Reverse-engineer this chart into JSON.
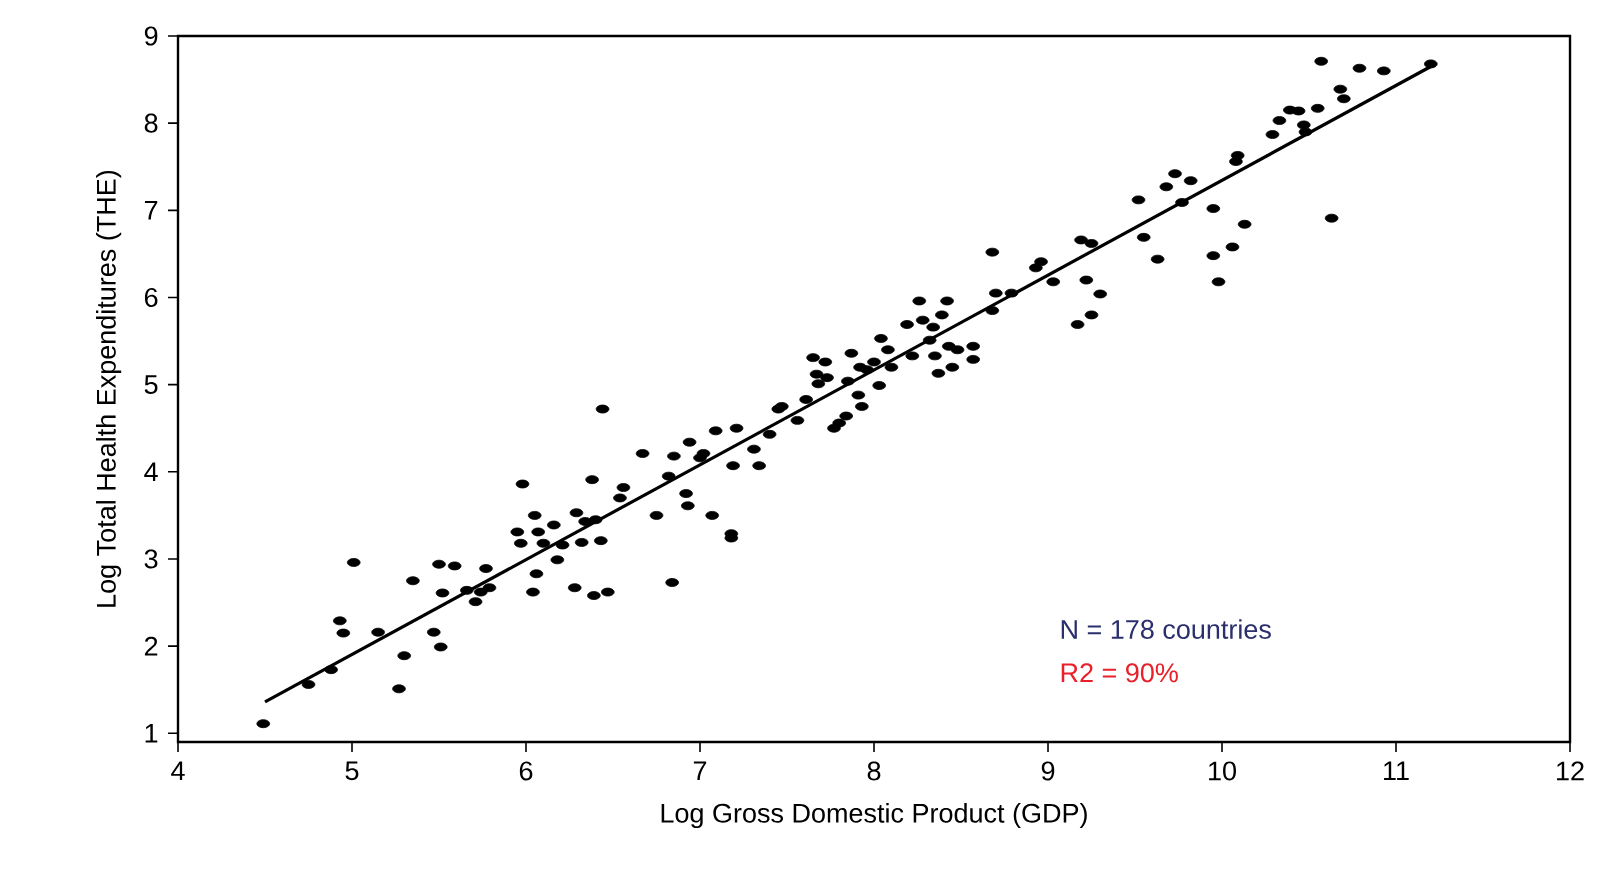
{
  "chart_data": {
    "type": "scatter",
    "xlabel": "Log Gross Domestic Product (GDP)",
    "ylabel": "Log Total Health Expenditures (THE)",
    "xlim": [
      4,
      12
    ],
    "ylim": [
      0.9,
      9
    ],
    "xticks": [
      4,
      5,
      6,
      7,
      8,
      9,
      10,
      11,
      12
    ],
    "yticks": [
      1,
      2,
      3,
      4,
      5,
      6,
      7,
      8,
      9
    ],
    "annotations": [
      "N = 178 countries",
      "R2 = 90%"
    ],
    "series": [
      {
        "marker": "circle",
        "color": "#000000",
        "x": [
          4.49,
          4.75,
          4.88,
          4.93,
          4.95,
          5.01,
          5.15,
          5.27,
          5.3,
          5.35,
          5.47,
          5.5,
          5.51,
          5.52,
          5.59,
          5.66,
          5.71,
          5.74,
          5.77,
          5.79,
          5.98,
          5.95,
          5.97,
          6.04,
          6.05,
          6.06,
          6.07,
          6.1,
          6.16,
          6.18,
          6.21,
          6.28,
          6.29,
          6.32,
          6.34,
          6.38,
          6.39,
          6.44,
          6.43,
          6.4,
          6.47,
          6.54,
          6.56,
          6.67,
          6.75,
          6.82,
          6.85,
          6.84,
          6.92,
          6.93,
          6.94,
          7.0,
          7.02,
          7.07,
          7.09,
          7.19,
          7.18,
          7.18,
          7.21,
          7.31,
          7.34,
          7.4,
          7.45,
          7.47,
          7.56,
          7.61,
          7.65,
          7.67,
          7.68,
          7.72,
          7.73,
          7.77,
          7.8,
          7.84,
          7.85,
          7.87,
          7.91,
          7.92,
          7.93,
          7.96,
          8.0,
          8.03,
          8.04,
          8.08,
          8.1,
          8.19,
          8.22,
          8.26,
          8.28,
          8.32,
          8.34,
          8.35,
          8.37,
          8.39,
          8.42,
          8.43,
          8.45,
          8.48,
          8.57,
          8.57,
          8.68,
          8.68,
          8.7,
          8.79,
          8.93,
          8.96,
          9.03,
          9.17,
          9.19,
          9.22,
          9.25,
          9.25,
          9.3,
          9.52,
          9.55,
          9.63,
          9.68,
          9.73,
          9.77,
          9.82,
          9.95,
          9.95,
          9.98,
          10.06,
          10.08,
          10.09,
          10.13,
          10.29,
          10.33,
          10.39,
          10.44,
          10.47,
          10.48,
          10.55,
          10.57,
          10.63,
          10.68,
          10.7,
          10.79,
          10.93,
          11.2
        ],
        "values": [
          1.11,
          1.56,
          1.73,
          2.29,
          2.15,
          2.96,
          2.16,
          1.51,
          1.89,
          2.75,
          2.16,
          2.94,
          1.99,
          2.61,
          2.92,
          2.64,
          2.51,
          2.62,
          2.89,
          2.67,
          3.86,
          3.31,
          3.18,
          2.62,
          3.5,
          2.83,
          3.31,
          3.18,
          3.39,
          2.99,
          3.16,
          2.67,
          3.53,
          3.19,
          3.43,
          3.91,
          2.58,
          4.72,
          3.21,
          3.45,
          2.62,
          3.7,
          3.82,
          4.21,
          3.5,
          3.95,
          4.18,
          2.73,
          3.75,
          3.61,
          4.34,
          4.16,
          4.21,
          3.5,
          4.47,
          4.07,
          3.29,
          3.24,
          4.5,
          4.26,
          4.07,
          4.43,
          4.72,
          4.75,
          4.59,
          4.83,
          5.31,
          5.12,
          5.01,
          5.26,
          5.08,
          4.5,
          4.56,
          4.64,
          5.04,
          5.36,
          4.88,
          5.2,
          4.75,
          5.17,
          5.26,
          4.99,
          5.53,
          5.4,
          5.2,
          5.69,
          5.33,
          5.96,
          5.74,
          5.51,
          5.66,
          5.33,
          5.13,
          5.8,
          5.96,
          5.44,
          5.2,
          5.4,
          5.29,
          5.44,
          6.52,
          5.85,
          6.05,
          6.05,
          6.34,
          6.41,
          6.18,
          5.69,
          6.66,
          6.2,
          6.62,
          5.8,
          6.04,
          7.12,
          6.69,
          6.44,
          7.27,
          7.42,
          7.09,
          7.34,
          7.02,
          6.48,
          6.18,
          6.58,
          7.56,
          7.63,
          6.84,
          7.87,
          8.03,
          8.15,
          8.14,
          7.98,
          7.9,
          8.17,
          8.71,
          6.91,
          8.39,
          8.28,
          8.63,
          8.6,
          8.68
        ]
      },
      {
        "type": "line",
        "marker": "none",
        "color": "#000000",
        "x": [
          4.5,
          11.2
        ],
        "values": [
          1.36,
          8.65
        ]
      }
    ]
  }
}
